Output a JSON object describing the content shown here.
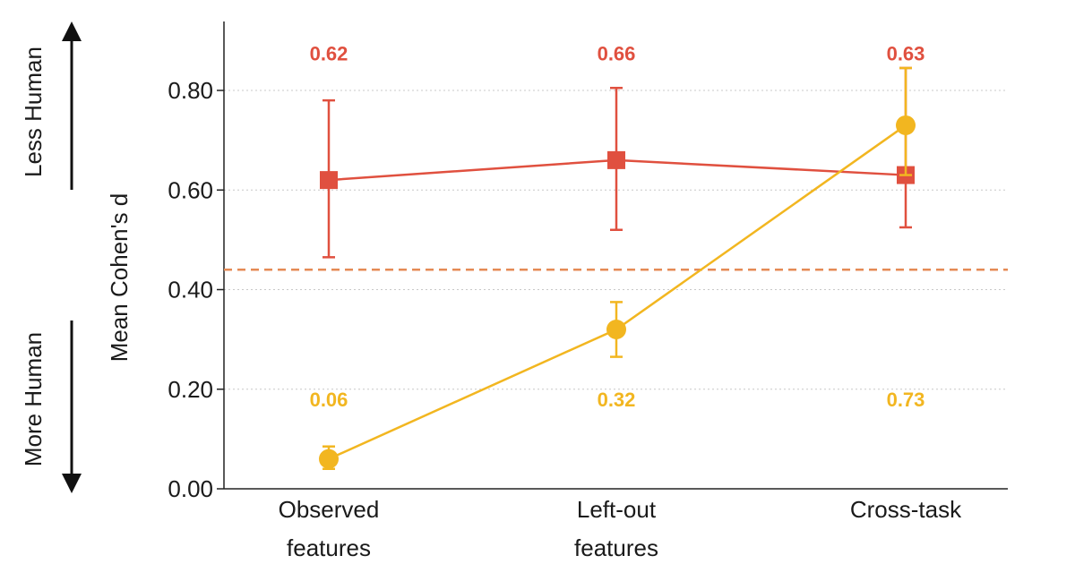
{
  "side_labels": {
    "top": "Less Human",
    "bottom": "More Human"
  },
  "chart_data": {
    "type": "line",
    "ylabel": "Mean Cohen's d",
    "ylim": [
      0,
      0.8
    ],
    "yticks": [
      "0.00",
      "0.20",
      "0.40",
      "0.60",
      "0.80"
    ],
    "ytick_values": [
      0,
      0.2,
      0.4,
      0.6,
      0.8
    ],
    "categories": [
      "Observed features",
      "Left-out features",
      "Cross-task"
    ],
    "category_lines": [
      [
        "Observed",
        "features"
      ],
      [
        "Left-out",
        "features"
      ],
      [
        "Cross-task"
      ]
    ],
    "reference_line": 0.44,
    "grid": "horizontal dotted",
    "series": [
      {
        "color": "#e0503f",
        "marker": "square",
        "values": [
          0.62,
          0.66,
          0.63
        ],
        "err_low": [
          0.465,
          0.52,
          0.525
        ],
        "err_high": [
          0.78,
          0.805,
          0.845
        ],
        "labels": [
          "0.62",
          "0.66",
          "0.63"
        ]
      },
      {
        "color": "#f2b620",
        "marker": "circle",
        "values": [
          0.06,
          0.32,
          0.73
        ],
        "err_low": [
          0.04,
          0.265,
          0.63
        ],
        "err_high": [
          0.085,
          0.375,
          0.845
        ],
        "labels": [
          "0.06",
          "0.32",
          "0.73"
        ]
      }
    ],
    "label_positions": {
      "series_0": 0.86,
      "series_1": 0.165
    },
    "colors": {
      "axis": "#222222",
      "grid": "#c8c8c8",
      "reference": "#e58a55",
      "text": "#1a1a1a"
    }
  }
}
